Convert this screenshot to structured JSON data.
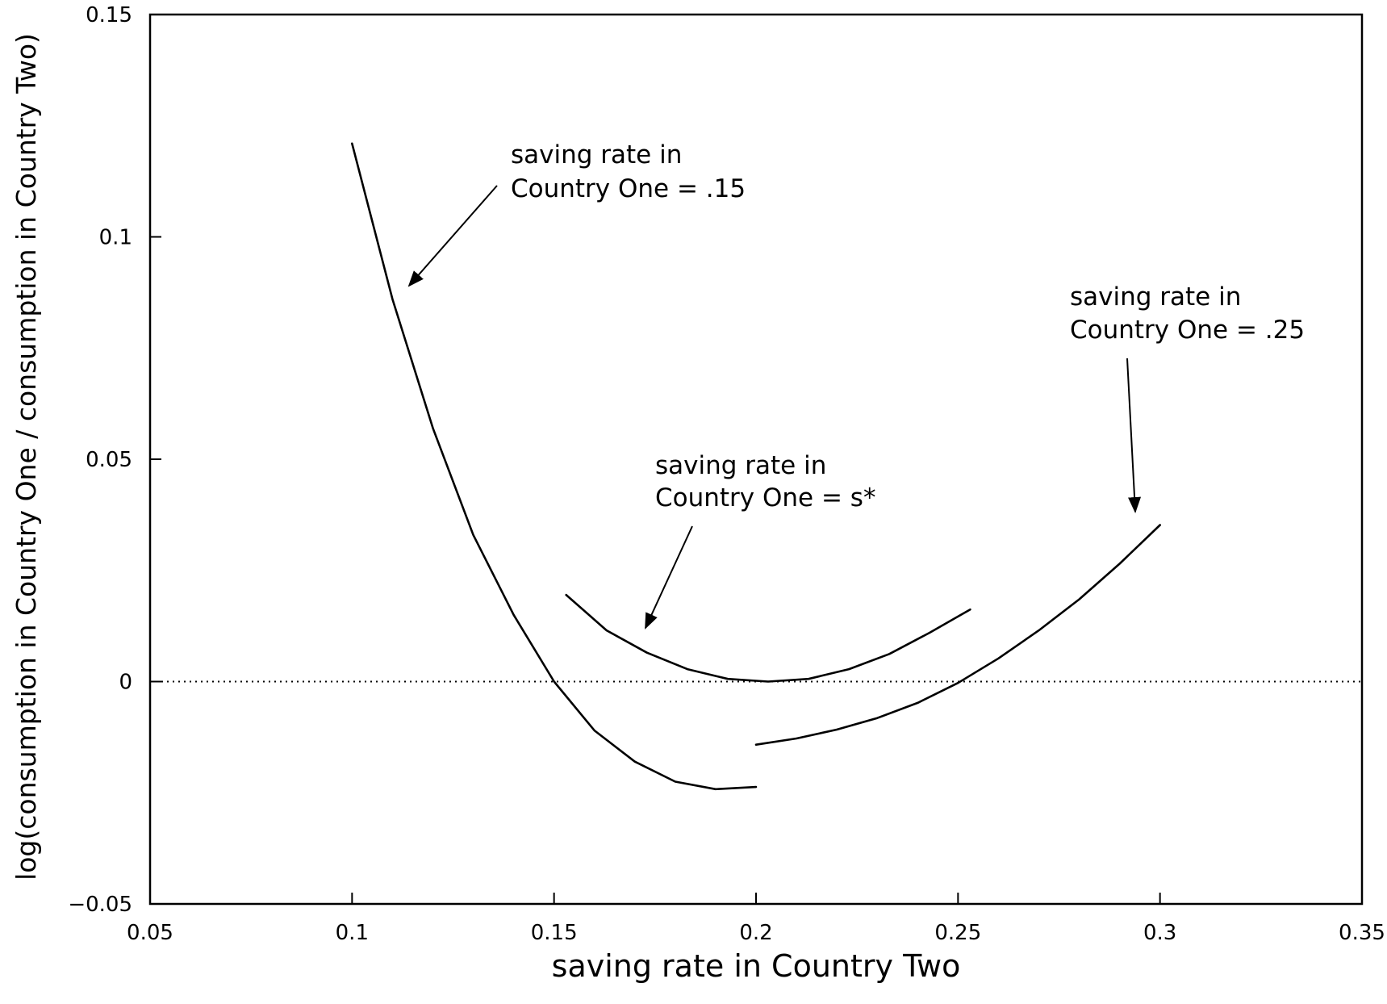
{
  "chart_data": {
    "type": "line",
    "title": "",
    "xlabel": "saving rate in Country Two",
    "ylabel": "log(consumption in Country One / consumption in Country Two)",
    "xlim": [
      0.05,
      0.35
    ],
    "ylim": [
      -0.05,
      0.15
    ],
    "x_ticks": [
      {
        "value": 0.05,
        "label": "0.05"
      },
      {
        "value": 0.1,
        "label": "0.1"
      },
      {
        "value": 0.15,
        "label": "0.15"
      },
      {
        "value": 0.2,
        "label": "0.2"
      },
      {
        "value": 0.25,
        "label": "0.25"
      },
      {
        "value": 0.3,
        "label": "0.3"
      },
      {
        "value": 0.35,
        "label": "0.35"
      }
    ],
    "y_ticks": [
      {
        "value": -0.05,
        "label": "−0.05"
      },
      {
        "value": 0,
        "label": "0"
      },
      {
        "value": 0.05,
        "label": "0.05"
      },
      {
        "value": 0.1,
        "label": "0.1"
      },
      {
        "value": 0.15,
        "label": "0.15"
      }
    ],
    "grid": false,
    "legend": "none",
    "reference_line": {
      "y": 0,
      "style": "dotted"
    },
    "series": [
      {
        "x": [
          0.1,
          0.11,
          0.12,
          0.13,
          0.14,
          0.15,
          0.16,
          0.17,
          0.18,
          0.19,
          0.2
        ],
        "y": [
          0.121,
          0.086,
          0.057,
          0.033,
          0.015,
          0.0,
          -0.011,
          -0.018,
          -0.0225,
          -0.0242,
          -0.0237
        ]
      },
      {
        "x": [
          0.153,
          0.163,
          0.173,
          0.183,
          0.193,
          0.203,
          0.213,
          0.223,
          0.233,
          0.243,
          0.253
        ],
        "y": [
          0.0195,
          0.0115,
          0.0065,
          0.0028,
          0.0006,
          0.0,
          0.0006,
          0.0028,
          0.0062,
          0.011,
          0.0162
        ]
      },
      {
        "x": [
          0.2,
          0.21,
          0.22,
          0.23,
          0.24,
          0.25,
          0.26,
          0.27,
          0.28,
          0.29,
          0.3
        ],
        "y": [
          -0.0142,
          -0.0128,
          -0.0108,
          -0.0082,
          -0.0048,
          -0.0003,
          0.0052,
          0.0115,
          0.0185,
          0.0265,
          0.0352
        ]
      }
    ],
    "annotations": [
      {
        "line1": "saving rate in",
        "line2": "Country One = .15"
      },
      {
        "line1": "saving rate in",
        "line2": "Country One = s*"
      },
      {
        "line1": "saving rate in",
        "line2": "Country One = .25"
      }
    ]
  }
}
